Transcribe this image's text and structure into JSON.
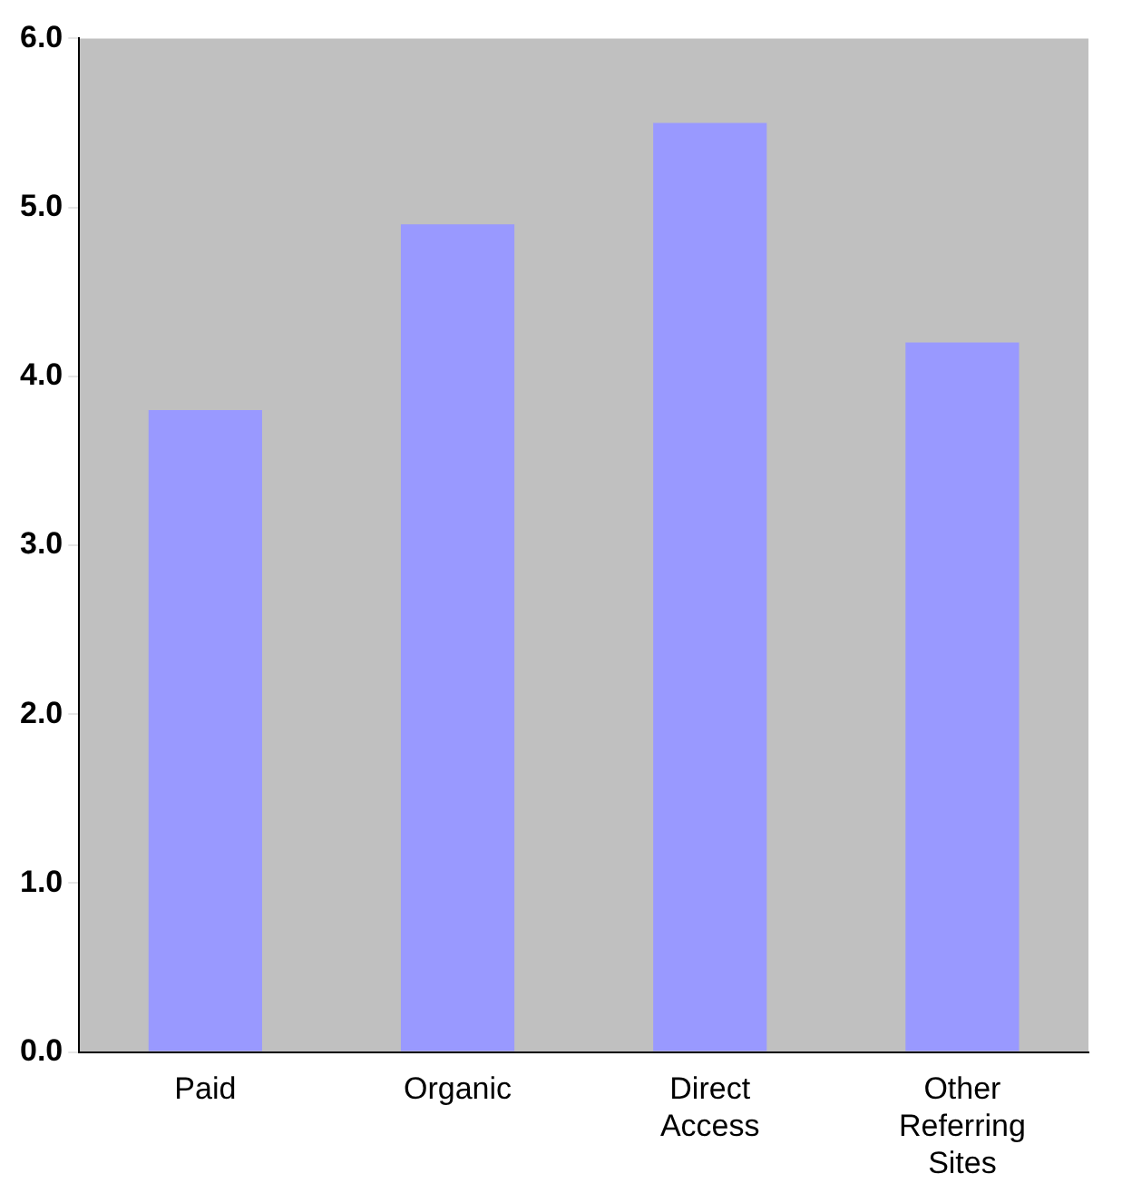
{
  "chart_data": {
    "type": "bar",
    "categories": [
      "Paid",
      "Organic",
      "Direct Access",
      "Other Referring Sites"
    ],
    "values": [
      3.8,
      4.9,
      5.5,
      4.2
    ],
    "color": "#9999ff",
    "ylim": [
      0,
      6
    ],
    "yticks": [
      {
        "value": 0,
        "label": "0.0"
      },
      {
        "value": 1,
        "label": "1.0"
      },
      {
        "value": 2,
        "label": "2.0"
      },
      {
        "value": 3,
        "label": "3.0"
      },
      {
        "value": 4,
        "label": "4.0"
      },
      {
        "value": 5,
        "label": "5.0"
      },
      {
        "value": 6,
        "label": "6.0"
      }
    ],
    "grid": false,
    "legend": false
  }
}
